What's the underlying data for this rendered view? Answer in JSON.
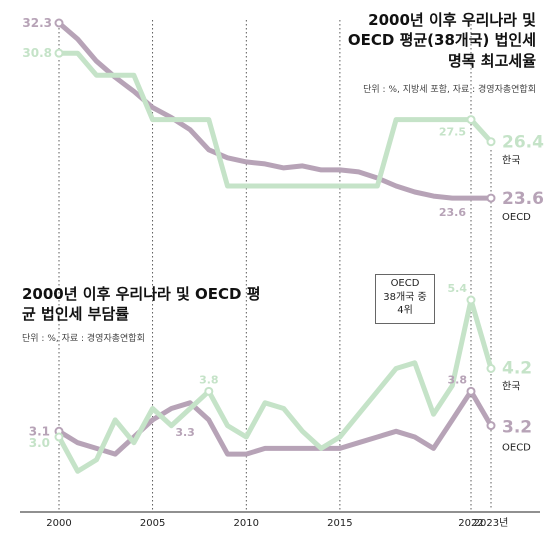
{
  "chart_data": [
    {
      "type": "line",
      "title": "2000년 이후 우리나라 및 OECD 평균(38개국) 법인세 명목 최고세율",
      "subtitle": "단위 : %, 지방세 포함, 자료 : 경영자총연합회",
      "x": [
        2000,
        2001,
        2002,
        2003,
        2004,
        2005,
        2006,
        2007,
        2008,
        2009,
        2010,
        2011,
        2012,
        2013,
        2014,
        2015,
        2016,
        2017,
        2018,
        2019,
        2020,
        2021,
        2022,
        2023
      ],
      "series": [
        {
          "name": "한국",
          "color": "#c5e3c8",
          "values": [
            30.8,
            30.8,
            29.7,
            29.7,
            29.7,
            27.5,
            27.5,
            27.5,
            27.5,
            24.2,
            24.2,
            24.2,
            24.2,
            24.2,
            24.2,
            24.2,
            24.2,
            24.2,
            27.5,
            27.5,
            27.5,
            27.5,
            27.5,
            26.4
          ]
        },
        {
          "name": "OECD",
          "color": "#b7a3b7",
          "values": [
            32.3,
            31.5,
            30.4,
            29.6,
            28.9,
            28.1,
            27.6,
            27.0,
            26.0,
            25.6,
            25.4,
            25.3,
            25.1,
            25.2,
            25.0,
            25.0,
            24.9,
            24.6,
            24.2,
            23.9,
            23.7,
            23.6,
            23.6,
            23.6
          ]
        }
      ],
      "value_labels": {
        "korea_start": "30.8",
        "oecd_start": "32.3",
        "korea_2022": "27.5",
        "oecd_2022": "23.6",
        "korea_end": "26.4",
        "oecd_end": "23.6",
        "korea_name": "한국",
        "oecd_name": "OECD"
      }
    },
    {
      "type": "line",
      "title": "2000년 이후 우리나라 및 OECD 평균 법인세 부담률",
      "subtitle": "단위 : %, 자료 : 경영자총연합회",
      "x": [
        2000,
        2001,
        2002,
        2003,
        2004,
        2005,
        2006,
        2007,
        2008,
        2009,
        2010,
        2011,
        2012,
        2013,
        2014,
        2015,
        2016,
        2017,
        2018,
        2019,
        2020,
        2021,
        2022,
        2023
      ],
      "series": [
        {
          "name": "한국",
          "color": "#c5e3c8",
          "values": [
            3.0,
            2.4,
            2.6,
            3.3,
            2.9,
            3.5,
            3.2,
            3.5,
            3.8,
            3.2,
            3.0,
            3.6,
            3.5,
            3.1,
            2.8,
            3.0,
            3.4,
            3.8,
            4.2,
            4.3,
            3.4,
            3.9,
            5.4,
            4.2
          ]
        },
        {
          "name": "OECD",
          "color": "#b7a3b7",
          "values": [
            3.1,
            2.9,
            2.8,
            2.7,
            3.0,
            3.3,
            3.5,
            3.6,
            3.3,
            2.7,
            2.7,
            2.8,
            2.8,
            2.8,
            2.8,
            2.8,
            2.9,
            3.0,
            3.1,
            3.0,
            2.8,
            3.3,
            3.8,
            3.2
          ]
        }
      ],
      "value_labels": {
        "korea_start": "3.0",
        "oecd_start": "3.1",
        "korea_peak": "3.8",
        "oecd_mid": "3.3",
        "korea_2022": "5.4",
        "oecd_2022": "3.8",
        "korea_end": "4.2",
        "oecd_end": "3.2",
        "korea_name": "한국",
        "oecd_name": "OECD"
      },
      "callout": [
        "OECD",
        "38개국 중",
        "4위"
      ]
    }
  ],
  "x_ticks": [
    "2000",
    "2005",
    "2010",
    "2015",
    "2022",
    "2023년"
  ],
  "colors": {
    "korea": "#c5e3c8",
    "oecd": "#b7a3b7",
    "guide": "#333333"
  }
}
